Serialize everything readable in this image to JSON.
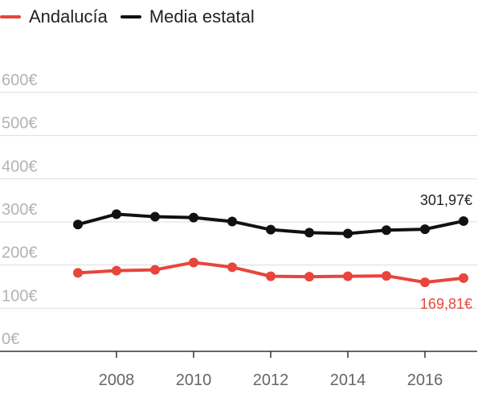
{
  "legend": [
    {
      "label": "Andalucía",
      "color": "#e8453c"
    },
    {
      "label": "Media estatal",
      "color": "#111111"
    }
  ],
  "chart_data": {
    "type": "line",
    "x": [
      2007,
      2008,
      2009,
      2010,
      2011,
      2012,
      2013,
      2014,
      2015,
      2016,
      2017
    ],
    "series": [
      {
        "name": "Media estatal",
        "color": "#111111",
        "values": [
          294,
          318,
          312,
          310,
          301,
          282,
          275,
          273,
          281,
          283,
          301.97
        ],
        "end_label": "301,97€"
      },
      {
        "name": "Andalucía",
        "color": "#e8453c",
        "values": [
          182,
          187,
          189,
          206,
          195,
          174,
          173,
          174,
          175,
          160,
          169.81
        ],
        "end_label": "169,81€"
      }
    ],
    "ylim": [
      0,
      600
    ],
    "yticks": [
      0,
      100,
      200,
      300,
      400,
      500,
      600
    ],
    "ytick_labels": [
      "0€",
      "100€",
      "200€",
      "300€",
      "400€",
      "500€",
      "600€"
    ],
    "xticks": [
      2008,
      2010,
      2012,
      2014,
      2016
    ],
    "xtick_labels": [
      "2008",
      "2010",
      "2012",
      "2014",
      "2016"
    ],
    "grid": true,
    "legend_position": "top-left"
  }
}
